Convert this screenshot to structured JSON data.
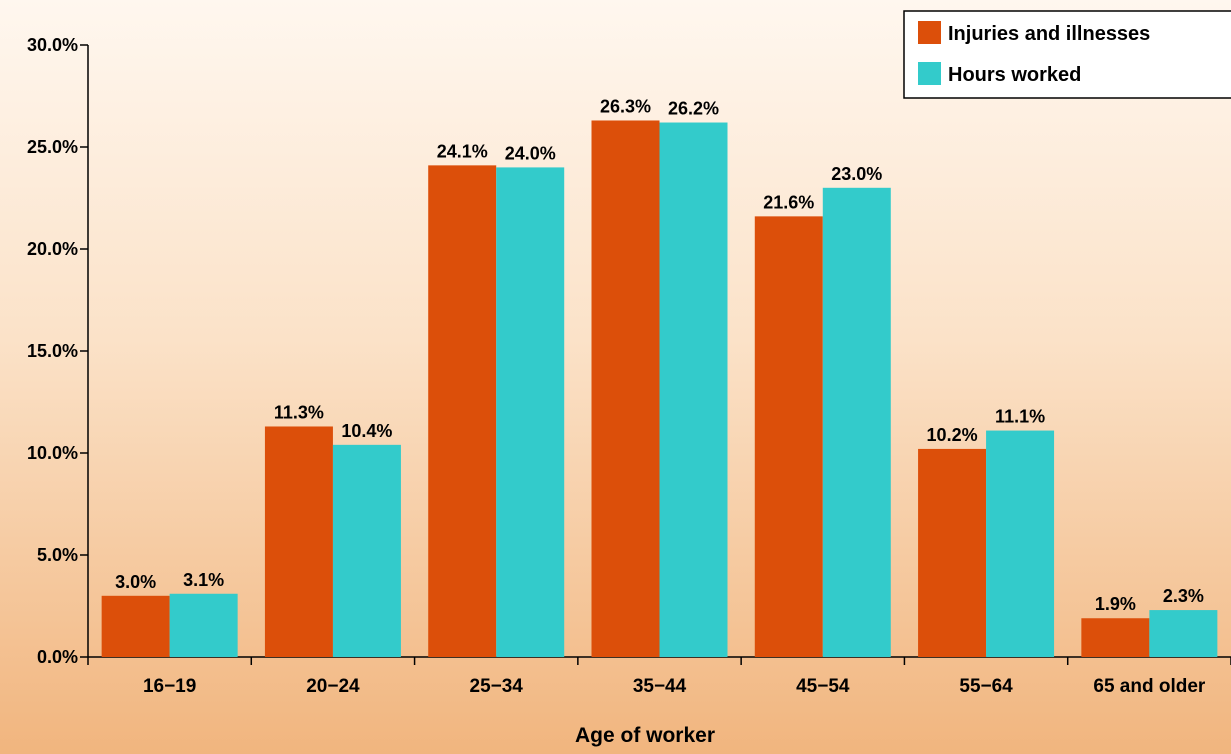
{
  "chart_data": {
    "type": "bar",
    "title": "",
    "xlabel": "Age of worker",
    "ylabel": "",
    "ylim": [
      0,
      30
    ],
    "y_ticks": [
      0,
      5,
      10,
      15,
      20,
      25,
      30
    ],
    "y_tick_labels": [
      "0.0%",
      "5.0%",
      "10.0%",
      "15.0%",
      "20.0%",
      "25.0%",
      "30.0%"
    ],
    "grid": false,
    "legend_position": "top-right",
    "categories": [
      "16−19",
      "20−24",
      "25−34",
      "35−44",
      "45−54",
      "55−64",
      "65 and older"
    ],
    "series": [
      {
        "name": "Injuries and illnesses",
        "color": "#dc4f0a",
        "values": [
          3.0,
          11.3,
          24.1,
          26.3,
          21.6,
          10.2,
          1.9
        ],
        "labels": [
          "3.0%",
          "11.3%",
          "24.1%",
          "26.3%",
          "21.6%",
          "10.2%",
          "1.9%"
        ]
      },
      {
        "name": "Hours worked",
        "color": "#33cbcb",
        "values": [
          3.1,
          10.4,
          24.0,
          26.2,
          23.0,
          11.1,
          2.3
        ],
        "labels": [
          "3.1%",
          "10.4%",
          "24.0%",
          "26.2%",
          "23.0%",
          "11.1%",
          "2.3%"
        ]
      }
    ]
  }
}
